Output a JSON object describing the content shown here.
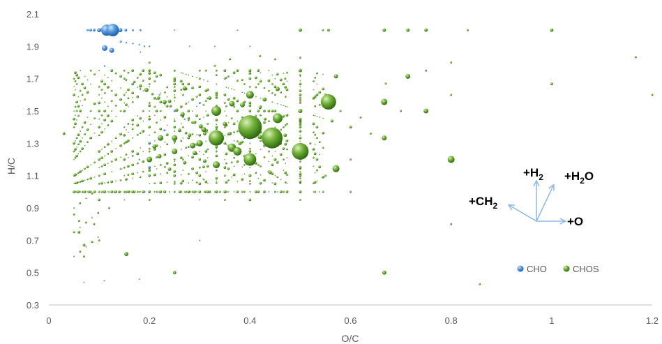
{
  "chart_data": {
    "type": "scatter",
    "subtype": "bubble",
    "title": "",
    "xlabel": "O/C",
    "ylabel": "H/C",
    "xlim": [
      0,
      1.2
    ],
    "ylim": [
      0.3,
      2.1
    ],
    "xticks": [
      0,
      0.2,
      0.4,
      0.6,
      0.8,
      1,
      1.2
    ],
    "xtick_labels": [
      "0",
      "0.2",
      "0.4",
      "0.6",
      "0.8",
      "1",
      "1.2"
    ],
    "yticks": [
      0.3,
      0.5,
      0.7,
      0.9,
      1.1,
      1.3,
      1.5,
      1.7,
      1.9,
      2.1
    ],
    "ytick_labels": [
      "0.3",
      "0.5",
      "0.7",
      "0.9",
      "1.1",
      "1.3",
      "1.5",
      "1.7",
      "1.9",
      "2.1"
    ],
    "grid": false,
    "legend_position": "bottom-right",
    "colors": {
      "CHO": "#4a90d9",
      "CHOS": "#6aab2e",
      "axis": "#bfbfbf",
      "vector": "#8db8e8"
    },
    "series": [
      {
        "name": "CHO",
        "points": [
          {
            "x": 0.115,
            "y": 2.0,
            "r": 8
          },
          {
            "x": 0.127,
            "y": 2.0,
            "r": 9
          },
          {
            "x": 0.1,
            "y": 2.0,
            "r": 3
          },
          {
            "x": 0.09,
            "y": 2.0,
            "r": 2
          },
          {
            "x": 0.083,
            "y": 2.0,
            "r": 2
          },
          {
            "x": 0.077,
            "y": 2.0,
            "r": 1.5
          },
          {
            "x": 0.142,
            "y": 2.0,
            "r": 3
          },
          {
            "x": 0.153,
            "y": 2.0,
            "r": 2
          },
          {
            "x": 0.167,
            "y": 2.0,
            "r": 1.5
          },
          {
            "x": 0.182,
            "y": 2.0,
            "r": 1.5
          },
          {
            "x": 0.111,
            "y": 1.889,
            "r": 4
          },
          {
            "x": 0.125,
            "y": 1.875,
            "r": 3.5
          },
          {
            "x": 0.143,
            "y": 1.929,
            "r": 1.5
          },
          {
            "x": 0.154,
            "y": 1.923,
            "r": 1.2
          },
          {
            "x": 0.167,
            "y": 1.917,
            "r": 1.2
          },
          {
            "x": 0.18,
            "y": 1.91,
            "r": 1.2
          },
          {
            "x": 0.19,
            "y": 1.9,
            "r": 1.2
          },
          {
            "x": 0.2,
            "y": 1.9,
            "r": 1.2
          },
          {
            "x": 0.182,
            "y": 1.864,
            "r": 1
          },
          {
            "x": 0.111,
            "y": 1.778,
            "r": 1.2
          },
          {
            "x": 0.22,
            "y": 1.6,
            "r": 1.2
          },
          {
            "x": 0.23,
            "y": 1.38,
            "r": 1.5
          },
          {
            "x": 0.2,
            "y": 1.3,
            "r": 1.5
          },
          {
            "x": 0.25,
            "y": 1.5,
            "r": 1.2
          },
          {
            "x": 0.18,
            "y": 1.2,
            "r": 1.2
          },
          {
            "x": 0.3,
            "y": 1.55,
            "r": 1.5
          },
          {
            "x": 0.2,
            "y": 1.15,
            "r": 1.5
          },
          {
            "x": 0.15,
            "y": 1.4,
            "r": 1.2
          },
          {
            "x": 0.27,
            "y": 1.45,
            "r": 1.2
          },
          {
            "x": 0.19,
            "y": 1.0,
            "r": 1.2
          }
        ]
      },
      {
        "name": "CHOS",
        "points": [
          {
            "x": 0.4,
            "y": 1.4,
            "r": 17
          },
          {
            "x": 0.444,
            "y": 1.333,
            "r": 15
          },
          {
            "x": 0.333,
            "y": 1.333,
            "r": 11
          },
          {
            "x": 0.5,
            "y": 1.25,
            "r": 12
          },
          {
            "x": 0.556,
            "y": 1.556,
            "r": 11
          },
          {
            "x": 0.4,
            "y": 1.2,
            "r": 9
          },
          {
            "x": 0.333,
            "y": 1.5,
            "r": 7
          },
          {
            "x": 0.455,
            "y": 1.455,
            "r": 7
          },
          {
            "x": 0.364,
            "y": 1.273,
            "r": 6
          },
          {
            "x": 0.375,
            "y": 1.25,
            "r": 6
          },
          {
            "x": 0.4,
            "y": 1.6,
            "r": 5.5
          },
          {
            "x": 0.333,
            "y": 1.167,
            "r": 5
          },
          {
            "x": 0.571,
            "y": 1.143,
            "r": 5
          },
          {
            "x": 0.8,
            "y": 1.2,
            "r": 5
          },
          {
            "x": 0.667,
            "y": 1.556,
            "r": 4.5
          },
          {
            "x": 0.3,
            "y": 1.3,
            "r": 4.5
          },
          {
            "x": 0.25,
            "y": 1.25,
            "r": 4
          },
          {
            "x": 0.286,
            "y": 1.286,
            "r": 4
          },
          {
            "x": 0.2,
            "y": 1.2,
            "r": 4
          },
          {
            "x": 0.222,
            "y": 1.333,
            "r": 4
          },
          {
            "x": 0.25,
            "y": 1.333,
            "r": 4
          },
          {
            "x": 0.364,
            "y": 1.545,
            "r": 4
          },
          {
            "x": 0.385,
            "y": 1.538,
            "r": 3.5
          },
          {
            "x": 0.308,
            "y": 1.385,
            "r": 3.5
          },
          {
            "x": 0.75,
            "y": 1.5,
            "r": 3.5
          },
          {
            "x": 0.714,
            "y": 1.714,
            "r": 3.5
          },
          {
            "x": 0.667,
            "y": 1.333,
            "r": 3.5
          },
          {
            "x": 0.571,
            "y": 1.714,
            "r": 3
          },
          {
            "x": 0.5,
            "y": 1.5,
            "r": 3
          },
          {
            "x": 0.455,
            "y": 1.636,
            "r": 3
          },
          {
            "x": 0.429,
            "y": 1.571,
            "r": 3
          },
          {
            "x": 0.42,
            "y": 1.34,
            "r": 3
          },
          {
            "x": 0.35,
            "y": 1.42,
            "r": 3
          },
          {
            "x": 0.32,
            "y": 1.58,
            "r": 2.5
          },
          {
            "x": 0.27,
            "y": 1.64,
            "r": 3
          },
          {
            "x": 0.24,
            "y": 1.56,
            "r": 2.5
          },
          {
            "x": 0.44,
            "y": 1.12,
            "r": 2.5
          },
          {
            "x": 0.5,
            "y": 1.75,
            "r": 2.5
          },
          {
            "x": 0.667,
            "y": 0.5,
            "r": 3
          },
          {
            "x": 0.154,
            "y": 0.615,
            "r": 3
          },
          {
            "x": 0.25,
            "y": 0.5,
            "r": 2.5
          },
          {
            "x": 0.5,
            "y": 2.0,
            "r": 2.5
          },
          {
            "x": 0.556,
            "y": 2.0,
            "r": 2
          },
          {
            "x": 0.667,
            "y": 2.0,
            "r": 2.5
          },
          {
            "x": 0.714,
            "y": 2.0,
            "r": 2.5
          },
          {
            "x": 0.75,
            "y": 2.0,
            "r": 2.5
          },
          {
            "x": 1.0,
            "y": 2.0,
            "r": 2.5
          },
          {
            "x": 0.833,
            "y": 2.0,
            "r": 1.5
          },
          {
            "x": 0.545,
            "y": 2.0,
            "r": 1.5
          },
          {
            "x": 0.6,
            "y": 1.4,
            "r": 2
          },
          {
            "x": 0.6,
            "y": 1.2,
            "r": 1.5
          },
          {
            "x": 0.563,
            "y": 1.438,
            "r": 2
          },
          {
            "x": 0.5,
            "y": 1.0,
            "r": 1.5
          },
          {
            "x": 0.8,
            "y": 0.8,
            "r": 1.5
          },
          {
            "x": 0.8,
            "y": 1.8,
            "r": 1.5
          },
          {
            "x": 0.8,
            "y": 1.6,
            "r": 1.5
          },
          {
            "x": 1.0,
            "y": 1.667,
            "r": 2
          },
          {
            "x": 1.167,
            "y": 1.833,
            "r": 1.5
          },
          {
            "x": 1.2,
            "y": 1.6,
            "r": 1.5
          },
          {
            "x": 0.857,
            "y": 0.429,
            "r": 1.5
          },
          {
            "x": 0.03,
            "y": 1.36,
            "r": 2
          },
          {
            "x": 0.07,
            "y": 0.67,
            "r": 2
          },
          {
            "x": 0.07,
            "y": 0.6,
            "r": 1.5
          },
          {
            "x": 0.06,
            "y": 0.75,
            "r": 2
          },
          {
            "x": 0.06,
            "y": 0.82,
            "r": 1.5
          },
          {
            "x": 0.05,
            "y": 0.86,
            "r": 1.5
          },
          {
            "x": 0.09,
            "y": 0.8,
            "r": 1.5
          },
          {
            "x": 0.1,
            "y": 0.7,
            "r": 1.5
          },
          {
            "x": 0.12,
            "y": 0.9,
            "r": 1.5
          },
          {
            "x": 0.45,
            "y": 1.2,
            "r": 2
          },
          {
            "x": 0.46,
            "y": 1.3,
            "r": 2.5
          },
          {
            "x": 0.47,
            "y": 1.35,
            "r": 2.5
          },
          {
            "x": 0.28,
            "y": 1.35,
            "r": 2.5
          },
          {
            "x": 0.31,
            "y": 1.36,
            "r": 2.5
          },
          {
            "x": 0.26,
            "y": 1.38,
            "r": 2.5
          },
          {
            "x": 0.34,
            "y": 1.32,
            "r": 2.5
          },
          {
            "x": 0.38,
            "y": 1.3,
            "r": 2.5
          },
          {
            "x": 0.36,
            "y": 1.36,
            "r": 2.5
          },
          {
            "x": 0.43,
            "y": 1.45,
            "r": 2
          },
          {
            "x": 0.42,
            "y": 1.52,
            "r": 2
          },
          {
            "x": 0.47,
            "y": 1.7,
            "r": 1.5
          },
          {
            "x": 0.4,
            "y": 1.75,
            "r": 2
          },
          {
            "x": 0.35,
            "y": 1.7,
            "r": 1.5
          },
          {
            "x": 0.3,
            "y": 1.7,
            "r": 1.5
          },
          {
            "x": 0.25,
            "y": 1.75,
            "r": 1.5
          },
          {
            "x": 0.2,
            "y": 1.8,
            "r": 1.5
          },
          {
            "x": 0.15,
            "y": 1.7,
            "r": 1.5
          },
          {
            "x": 0.6,
            "y": 1.0,
            "r": 1.5
          },
          {
            "x": 0.55,
            "y": 1.1,
            "r": 1.5
          },
          {
            "x": 0.52,
            "y": 1.3,
            "r": 1.5
          },
          {
            "x": 0.55,
            "y": 1.6,
            "r": 2
          },
          {
            "x": 0.58,
            "y": 1.5,
            "r": 1.5
          },
          {
            "x": 0.62,
            "y": 1.46,
            "r": 1.5
          },
          {
            "x": 0.64,
            "y": 1.36,
            "r": 1.5
          },
          {
            "x": 0.7,
            "y": 1.5,
            "r": 1.5
          },
          {
            "x": 0.75,
            "y": 1.75,
            "r": 1.5
          },
          {
            "x": 0.67,
            "y": 1.67,
            "r": 1.5
          },
          {
            "x": 0.5,
            "y": 1.83,
            "r": 1.5
          },
          {
            "x": 0.45,
            "y": 1.82,
            "r": 1.5
          },
          {
            "x": 0.42,
            "y": 1.84,
            "r": 1.5
          },
          {
            "x": 0.36,
            "y": 1.82,
            "r": 1.5
          },
          {
            "x": 0.33,
            "y": 1.78,
            "r": 1.5
          },
          {
            "x": 0.28,
            "y": 1.9,
            "r": 1
          },
          {
            "x": 0.33,
            "y": 1.9,
            "r": 1
          },
          {
            "x": 0.4,
            "y": 1.9,
            "r": 1
          },
          {
            "x": 0.25,
            "y": 2.0,
            "r": 1
          },
          {
            "x": 0.375,
            "y": 2.0,
            "r": 1
          },
          {
            "x": 0.3,
            "y": 0.7,
            "r": 1
          },
          {
            "x": 0.18,
            "y": 0.46,
            "r": 1
          },
          {
            "x": 0.11,
            "y": 0.45,
            "r": 1
          },
          {
            "x": 0.07,
            "y": 0.44,
            "r": 1
          },
          {
            "x": 0.35,
            "y": 1.0,
            "r": 1.5
          },
          {
            "x": 0.4,
            "y": 1.1,
            "r": 2
          },
          {
            "x": 0.3,
            "y": 1.1,
            "r": 2
          },
          {
            "x": 0.31,
            "y": 1.19,
            "r": 2.5
          },
          {
            "x": 0.27,
            "y": 1.18,
            "r": 2.5
          },
          {
            "x": 0.29,
            "y": 1.24,
            "r": 3
          },
          {
            "x": 0.22,
            "y": 1.22,
            "r": 3
          },
          {
            "x": 0.24,
            "y": 1.14,
            "r": 2.5
          },
          {
            "x": 0.21,
            "y": 1.28,
            "r": 3
          }
        ]
      }
    ],
    "annotations": {
      "vectors": [
        {
          "label_main": "+H",
          "label_sub": "2",
          "label_tail": "",
          "dx": 0,
          "dy": 1
        },
        {
          "label_main": "+H",
          "label_sub": "2",
          "label_tail": "O",
          "dx": 0.45,
          "dy": 0.95
        },
        {
          "label_main": "+CH",
          "label_sub": "2",
          "label_tail": "",
          "dx": -0.85,
          "dy": 0.5
        },
        {
          "label_main": "+O",
          "label_sub": "",
          "label_tail": "",
          "dx": 1,
          "dy": 0
        }
      ]
    }
  }
}
